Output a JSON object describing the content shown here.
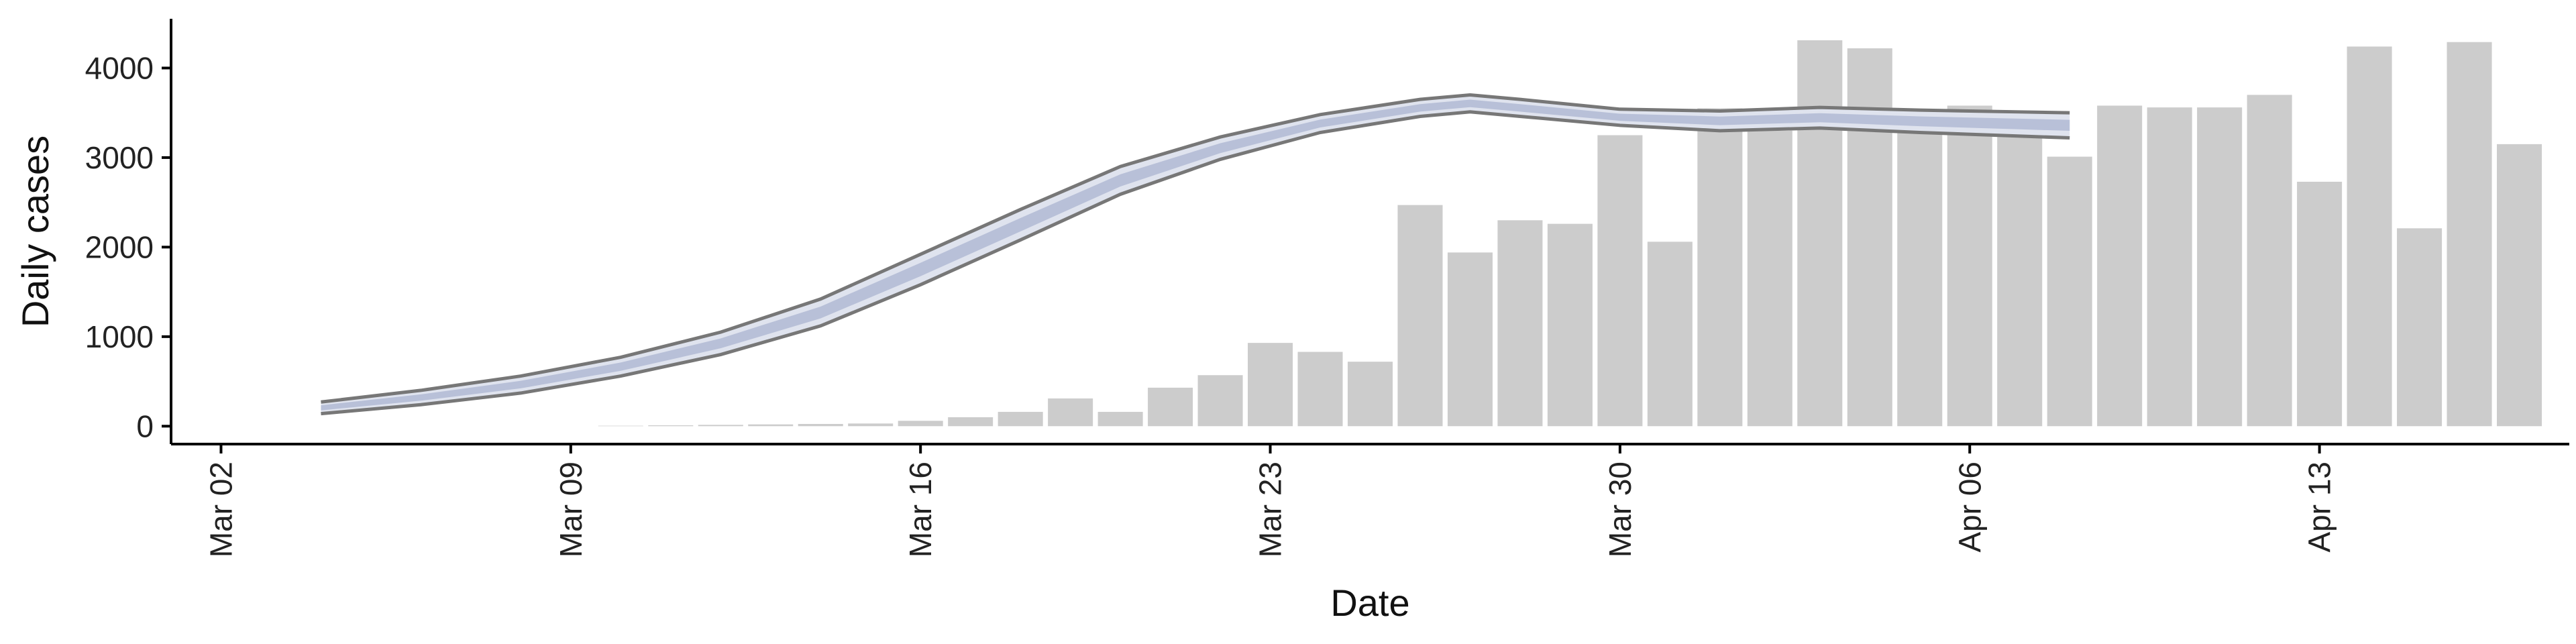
{
  "colors": {
    "bar": "#cccccc",
    "band_outer": "#dfe3ee",
    "band_inner": "#b8c0d8",
    "ci_line": "#777777",
    "axis": "#000000"
  },
  "chart_data": {
    "type": "bar",
    "xlabel": "Date",
    "ylabel": "Daily cases",
    "ylim": [
      -200,
      4550
    ],
    "xlim": [
      "2020-03-01",
      "2020-04-18"
    ],
    "grid": false,
    "legend": "none",
    "x_ticks": [
      {
        "date": "2020-03-02",
        "label": "Mar 02"
      },
      {
        "date": "2020-03-09",
        "label": "Mar 09"
      },
      {
        "date": "2020-03-16",
        "label": "Mar 16"
      },
      {
        "date": "2020-03-23",
        "label": "Mar 23"
      },
      {
        "date": "2020-03-30",
        "label": "Mar 30"
      },
      {
        "date": "2020-04-06",
        "label": "Apr 06"
      },
      {
        "date": "2020-04-13",
        "label": "Apr 13"
      }
    ],
    "y_ticks": [
      0,
      1000,
      2000,
      3000,
      4000
    ],
    "bars": {
      "dates": [
        "2020-03-10",
        "2020-03-11",
        "2020-03-12",
        "2020-03-13",
        "2020-03-14",
        "2020-03-15",
        "2020-03-16",
        "2020-03-17",
        "2020-03-18",
        "2020-03-19",
        "2020-03-20",
        "2020-03-21",
        "2020-03-22",
        "2020-03-23",
        "2020-03-24",
        "2020-03-25",
        "2020-03-26",
        "2020-03-27",
        "2020-03-28",
        "2020-03-29",
        "2020-03-30",
        "2020-03-31",
        "2020-04-01",
        "2020-04-02",
        "2020-04-03",
        "2020-04-04",
        "2020-04-05",
        "2020-04-06",
        "2020-04-07",
        "2020-04-08",
        "2020-04-09",
        "2020-04-10",
        "2020-04-11",
        "2020-04-12",
        "2020-04-13",
        "2020-04-14",
        "2020-04-15",
        "2020-04-16",
        "2020-04-17"
      ],
      "values": [
        5,
        10,
        15,
        20,
        25,
        30,
        60,
        100,
        160,
        310,
        160,
        430,
        570,
        930,
        830,
        720,
        2470,
        1940,
        2300,
        2260,
        3250,
        2060,
        3550,
        3300,
        4310,
        4220,
        3390,
        3580,
        3340,
        3010,
        3580,
        3560,
        3560,
        3700,
        2730,
        4240,
        2210,
        4290,
        3150
      ]
    },
    "estimate": {
      "dates": [
        "2020-03-04",
        "2020-03-06",
        "2020-03-08",
        "2020-03-10",
        "2020-03-12",
        "2020-03-14",
        "2020-03-16",
        "2020-03-18",
        "2020-03-20",
        "2020-03-22",
        "2020-03-24",
        "2020-03-26",
        "2020-03-27",
        "2020-03-28",
        "2020-03-30",
        "2020-04-01",
        "2020-04-03",
        "2020-04-05",
        "2020-04-07",
        "2020-04-08"
      ],
      "upper": [
        270,
        400,
        560,
        770,
        1050,
        1420,
        1920,
        2420,
        2900,
        3230,
        3480,
        3650,
        3700,
        3650,
        3540,
        3520,
        3560,
        3530,
        3510,
        3500
      ],
      "lower": [
        140,
        240,
        370,
        560,
        800,
        1120,
        1580,
        2080,
        2590,
        2980,
        3280,
        3460,
        3510,
        3460,
        3360,
        3300,
        3330,
        3280,
        3240,
        3220
      ]
    }
  }
}
